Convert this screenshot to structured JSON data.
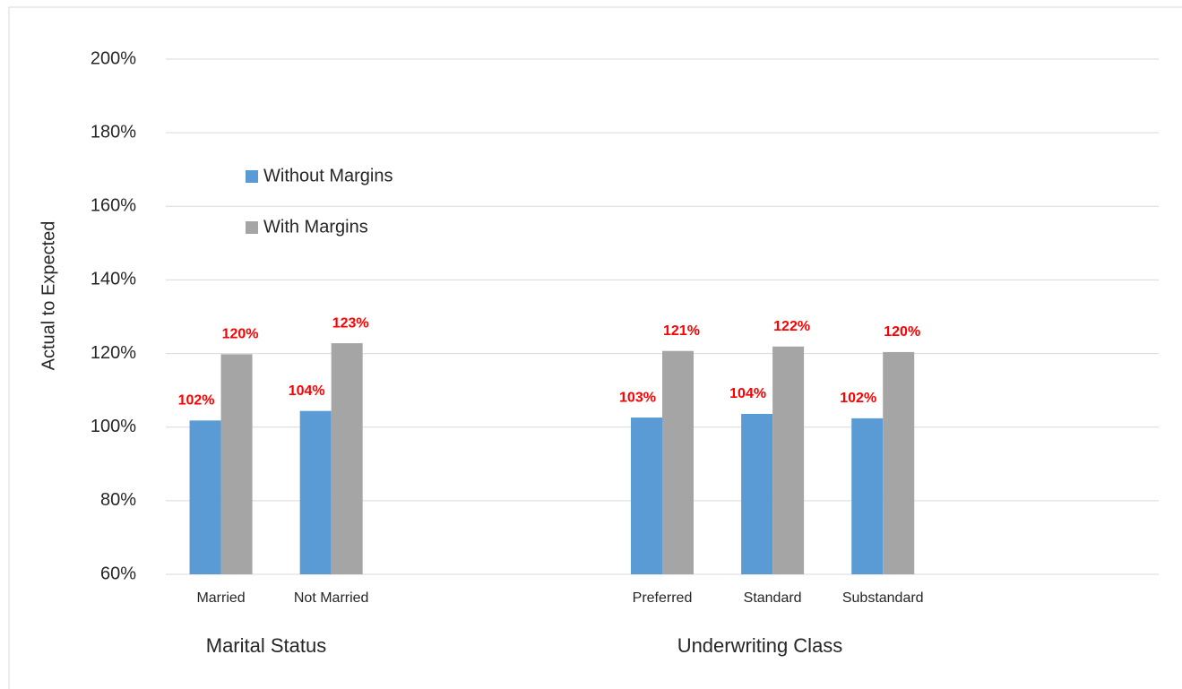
{
  "chart_data": {
    "type": "bar",
    "y_label": "Actual to Expected",
    "categories": [
      "Married",
      "Not Married",
      null,
      null,
      "Preferred",
      "Standard",
      "Substandard",
      null,
      null
    ],
    "group_labels": [
      "Marital Status",
      "Underwriting Class"
    ],
    "series": [
      {
        "name": "Without Margins",
        "color": "#5b9bd5",
        "values": [
          101.8,
          104.4,
          null,
          null,
          102.6,
          103.6,
          102.4,
          null,
          null
        ],
        "value_labels": [
          "102%",
          "104%",
          null,
          null,
          "103%",
          "104%",
          "102%",
          null,
          null
        ]
      },
      {
        "name": "With Margins",
        "color": "#a5a5a5",
        "values": [
          119.8,
          122.8,
          null,
          null,
          120.7,
          121.9,
          120.4,
          null,
          null
        ],
        "value_labels": [
          "120%",
          "123%",
          null,
          null,
          "121%",
          "122%",
          "120%",
          null,
          null
        ]
      }
    ],
    "ylim": [
      60,
      200
    ],
    "yticks": [
      {
        "value": 60,
        "label": "60%"
      },
      {
        "value": 80,
        "label": "80%"
      },
      {
        "value": 100,
        "label": "100%"
      },
      {
        "value": 120,
        "label": "120%"
      },
      {
        "value": 140,
        "label": "140%"
      },
      {
        "value": 160,
        "label": "160%"
      },
      {
        "value": 180,
        "label": "180%"
      },
      {
        "value": 200,
        "label": "200%"
      }
    ],
    "grid": true
  }
}
